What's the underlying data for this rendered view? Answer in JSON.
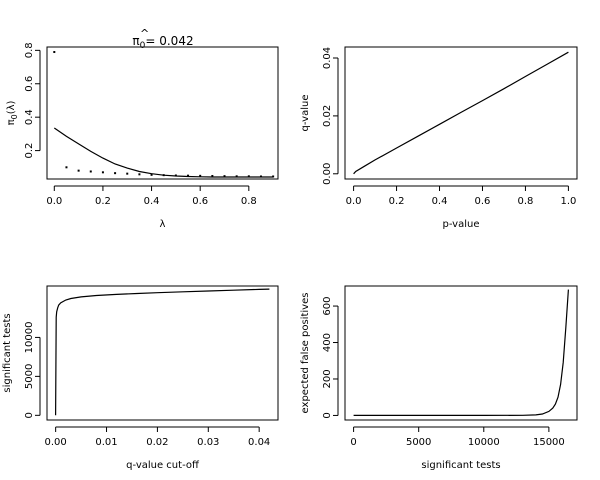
{
  "chart_data": [
    {
      "type": "scatter",
      "panel": "top-left",
      "title": "π̂₀ = 0.042",
      "title_parts": {
        "hat": "^",
        "symbol": "π",
        "subscript": "0",
        "suffix": "= 0.042"
      },
      "xlabel": "λ",
      "ylabel_parts": {
        "symbol": "π",
        "subscript": "0",
        "suffix": "(λ)"
      },
      "xlim": [
        -0.03,
        0.92
      ],
      "ylim": [
        0.03,
        0.82
      ],
      "xticks": [
        0.0,
        0.2,
        0.4,
        0.6,
        0.8
      ],
      "xtick_labels": [
        "0.0",
        "0.2",
        "0.4",
        "0.6",
        "0.8"
      ],
      "yticks": [
        0.2,
        0.4,
        0.6,
        0.8
      ],
      "ytick_labels": [
        "0.2",
        "0.4",
        "0.6",
        "0.8"
      ],
      "series": [
        {
          "kind": "points",
          "x": [
            0.0,
            0.05,
            0.1,
            0.15,
            0.2,
            0.25,
            0.3,
            0.35,
            0.4,
            0.45,
            0.5,
            0.55,
            0.6,
            0.65,
            0.7,
            0.75,
            0.8,
            0.85,
            0.9
          ],
          "y": [
            0.79,
            0.1,
            0.08,
            0.075,
            0.07,
            0.065,
            0.062,
            0.058,
            0.055,
            0.053,
            0.051,
            0.05,
            0.049,
            0.048,
            0.047,
            0.046,
            0.046,
            0.045,
            0.045
          ]
        },
        {
          "kind": "line",
          "x": [
            0.0,
            0.05,
            0.1,
            0.15,
            0.2,
            0.25,
            0.3,
            0.35,
            0.4,
            0.45,
            0.5,
            0.55,
            0.6,
            0.65,
            0.7,
            0.75,
            0.8,
            0.85,
            0.9
          ],
          "y": [
            0.335,
            0.285,
            0.24,
            0.195,
            0.155,
            0.12,
            0.095,
            0.075,
            0.062,
            0.053,
            0.048,
            0.045,
            0.043,
            0.042,
            0.042,
            0.042,
            0.042,
            0.042,
            0.042
          ]
        }
      ]
    },
    {
      "type": "line",
      "panel": "top-right",
      "xlabel": "p-value",
      "ylabel": "q-value",
      "xlim": [
        -0.04,
        1.04
      ],
      "ylim": [
        -0.0018,
        0.0438
      ],
      "xticks": [
        0.0,
        0.2,
        0.4,
        0.6,
        0.8,
        1.0
      ],
      "xtick_labels": [
        "0.0",
        "0.2",
        "0.4",
        "0.6",
        "0.8",
        "1.0"
      ],
      "yticks": [
        0.0,
        0.02,
        0.04
      ],
      "ytick_labels": [
        "0.00",
        "0.02",
        "0.04"
      ],
      "series": [
        {
          "kind": "line",
          "x": [
            0.0,
            0.01,
            0.05,
            0.1,
            0.2,
            0.3,
            0.4,
            0.5,
            0.6,
            0.7,
            0.8,
            0.9,
            1.0
          ],
          "y": [
            0.0,
            0.0008,
            0.0026,
            0.0048,
            0.0089,
            0.013,
            0.0171,
            0.0212,
            0.0253,
            0.0294,
            0.0336,
            0.0378,
            0.042
          ]
        }
      ]
    },
    {
      "type": "line",
      "panel": "bottom-left",
      "xlabel": "q-value cut-off",
      "ylabel": "significant tests",
      "xlim": [
        -0.0017,
        0.0437
      ],
      "ylim": [
        -600,
        16600
      ],
      "xticks": [
        0.0,
        0.01,
        0.02,
        0.03,
        0.04
      ],
      "xtick_labels": [
        "0.00",
        "0.01",
        "0.02",
        "0.03",
        "0.04"
      ],
      "yticks": [
        0,
        5000,
        10000
      ],
      "ytick_labels": [
        "0",
        "5000",
        "10000"
      ],
      "series": [
        {
          "kind": "line",
          "x": [
            0.0,
            0.0001,
            0.0002,
            0.0004,
            0.0006,
            0.001,
            0.002,
            0.003,
            0.005,
            0.008,
            0.012,
            0.016,
            0.02,
            0.025,
            0.03,
            0.035,
            0.04,
            0.042
          ],
          "y": [
            0,
            12600,
            13300,
            13800,
            14150,
            14450,
            14800,
            15000,
            15200,
            15380,
            15520,
            15640,
            15740,
            15850,
            15960,
            16060,
            16160,
            16200
          ]
        }
      ]
    },
    {
      "type": "line",
      "panel": "bottom-right",
      "xlabel": "significant tests",
      "ylabel": "expected false positives",
      "xlim": [
        -660,
        17160
      ],
      "ylim": [
        -25,
        710
      ],
      "xticks": [
        0,
        5000,
        10000,
        15000
      ],
      "xtick_labels": [
        "0",
        "5000",
        "10000",
        "15000"
      ],
      "yticks": [
        0,
        200,
        400,
        600
      ],
      "ytick_labels": [
        "0",
        "200",
        "400",
        "600"
      ],
      "series": [
        {
          "kind": "line",
          "x": [
            0,
            5000,
            10000,
            13000,
            14000,
            14500,
            15000,
            15300,
            15500,
            15700,
            15900,
            16100,
            16300,
            16500
          ],
          "y": [
            0,
            0,
            0,
            1,
            3,
            8,
            22,
            40,
            62,
            100,
            170,
            290,
            480,
            690
          ]
        }
      ]
    }
  ]
}
